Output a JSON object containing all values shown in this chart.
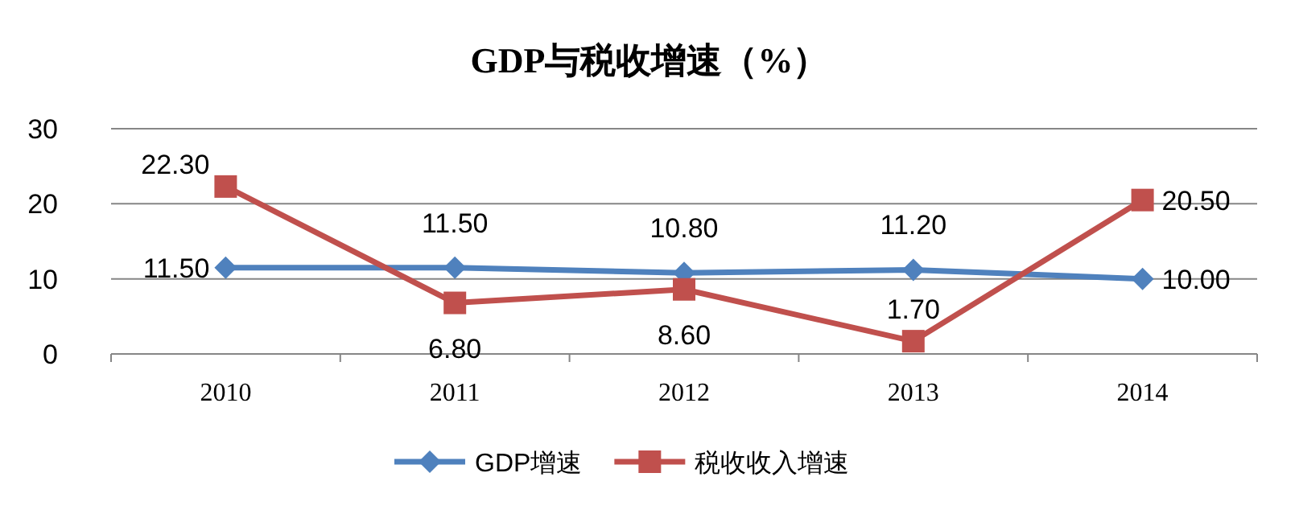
{
  "chart_data": {
    "type": "line",
    "title": "GDP与税收增速（%）",
    "categories": [
      "2010",
      "2011",
      "2012",
      "2013",
      "2014"
    ],
    "series": [
      {
        "name": "GDP增速",
        "color": "#4f81bd",
        "marker": "diamond",
        "values": [
          11.5,
          11.5,
          10.8,
          11.2,
          10.0
        ]
      },
      {
        "name": "税收收入增速",
        "color": "#c0504d",
        "marker": "square",
        "values": [
          22.3,
          6.8,
          8.6,
          1.7,
          20.5
        ]
      }
    ],
    "value_labels": [
      [
        "11.50",
        "11.50",
        "10.80",
        "11.20",
        "10.00"
      ],
      [
        "22.30",
        "6.80",
        "8.60",
        "1.70",
        "20.50"
      ]
    ],
    "ylim": [
      0,
      30
    ],
    "yticks": [
      0,
      10,
      20,
      30
    ],
    "grid": "y",
    "legend": "bottom"
  }
}
